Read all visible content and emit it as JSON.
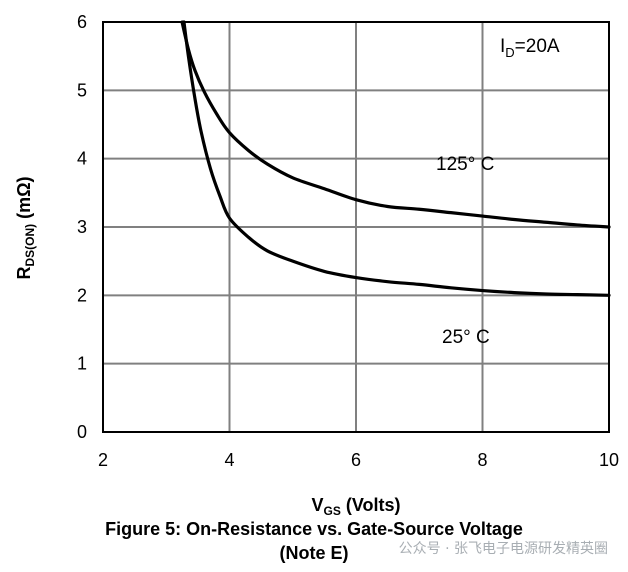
{
  "chart_data": {
    "type": "line",
    "title": "",
    "xlim": [
      2,
      10
    ],
    "ylim": [
      0,
      6
    ],
    "x_ticks": [
      "2",
      "4",
      "6",
      "8",
      "10"
    ],
    "y_ticks": [
      "0",
      "1",
      "2",
      "3",
      "4",
      "5",
      "6"
    ],
    "grid": true,
    "series": [
      {
        "name": "125° C",
        "x": [
          3.25,
          3.35,
          3.45,
          3.6,
          3.8,
          4.0,
          4.3,
          4.6,
          5.0,
          5.5,
          6.0,
          6.5,
          7.0,
          7.5,
          8.0,
          8.5,
          9.0,
          9.5,
          10.0
        ],
        "y": [
          6.0,
          5.6,
          5.3,
          4.98,
          4.65,
          4.38,
          4.12,
          3.92,
          3.72,
          3.56,
          3.4,
          3.3,
          3.26,
          3.21,
          3.16,
          3.11,
          3.07,
          3.03,
          3.0
        ]
      },
      {
        "name": "25° C",
        "x": [
          3.28,
          3.35,
          3.45,
          3.55,
          3.7,
          3.85,
          4.0,
          4.3,
          4.6,
          5.0,
          5.5,
          6.0,
          6.5,
          7.0,
          7.5,
          8.0,
          8.5,
          9.0,
          9.5,
          10.0
        ],
        "y": [
          6.0,
          5.5,
          4.9,
          4.4,
          3.85,
          3.45,
          3.13,
          2.85,
          2.65,
          2.5,
          2.35,
          2.26,
          2.2,
          2.16,
          2.11,
          2.07,
          2.04,
          2.02,
          2.01,
          2.0
        ]
      }
    ]
  },
  "labels": {
    "xlabel_main": "V",
    "xlabel_sub": "GS",
    "xlabel_rest": " (Volts)",
    "ylabel_main": "R",
    "ylabel_sub": "DS(ON)",
    "ylabel_rest": " (mΩ)",
    "id_main": "I",
    "id_sub": "D",
    "id_rest": "=20A",
    "series_label_125": "125° C",
    "series_label_25": "25° C",
    "caption_line1": "Figure 5: On-Resistance vs. Gate-Source Voltage",
    "caption_line2": "(Note E)",
    "watermark": "公众号 · 张飞电子电源研发精英圈"
  }
}
